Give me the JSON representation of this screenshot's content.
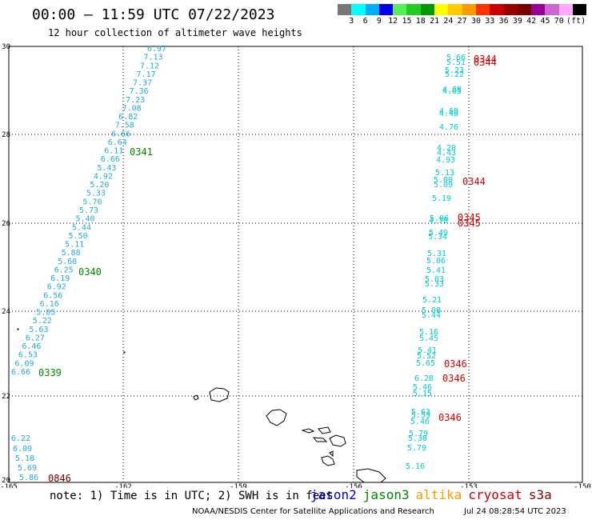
{
  "header": {
    "title": "00:00 — 11:59 UTC 07/22/2023",
    "subtitle": "12 hour collection of altimeter wave heights"
  },
  "color_scale": {
    "colors": [
      "#777777",
      "#00ffff",
      "#00aaff",
      "#0000ee",
      "#55ee55",
      "#22cc22",
      "#009900",
      "#ffff00",
      "#ffcc00",
      "#ff9900",
      "#ff3300",
      "#cc0000",
      "#990000",
      "#770000",
      "#990099",
      "#cc66cc",
      "#ffaaff",
      "#000000"
    ],
    "labels": [
      "3",
      "6",
      "9",
      "12",
      "15",
      "18",
      "21",
      "24",
      "27",
      "30",
      "33",
      "36",
      "39",
      "42",
      "45",
      "70",
      "(ft)"
    ]
  },
  "axes": {
    "lat_labels": [
      "30",
      "28",
      "26",
      "24",
      "22",
      "20"
    ],
    "lon_labels": [
      "-165",
      "-162",
      "-159",
      "-156",
      "-153",
      "-150"
    ]
  },
  "tracks": {
    "west_track_color": "#22aadd",
    "east_track_color": "#00cccc",
    "west_values": [
      "6.97",
      "7.13",
      "7.12",
      "7.17",
      "7.37",
      "7.36",
      "7.23",
      "7.08",
      "6.82",
      "7.58",
      "6.66",
      "6.64",
      "6.11",
      "6.66",
      "5.43",
      "4.92",
      "5.20",
      "5.33",
      "5.70",
      "5.73",
      "5.40",
      "5.44",
      "5.50",
      "5.11",
      "5.88",
      "5.60",
      "6.25",
      "6.19",
      "6.92",
      "6.56",
      "6.16",
      "5.85",
      "5.22",
      "5.63",
      "6.27",
      "6.46",
      "6.53",
      "6.09",
      "6.66"
    ],
    "south_values": [
      "6.22",
      "6.09",
      "5.18",
      "5.69",
      "5.86"
    ],
    "east_values": [
      "5.66",
      "5.51",
      "5.23",
      "5.22",
      "4.68",
      "4.65",
      "4.68",
      "4.48",
      "4.76",
      "4.20",
      "4.43",
      "4.93",
      "5.13",
      "5.00",
      "5.09",
      "5.19",
      "5.06",
      "4.70",
      "5.49",
      "5.34",
      "5.31",
      "5.06",
      "5.41",
      "5.03",
      "5.33",
      "5.21",
      "5.08",
      "5.44",
      "5.16",
      "5.45",
      "5.41",
      "5.52",
      "5.65",
      "6.28",
      "5.46",
      "5.15",
      "5.63",
      "5.59",
      "5.46",
      "5.79",
      "5.38",
      "5.79",
      "5.16"
    ]
  },
  "time_labels": [
    {
      "text": "0341",
      "color": "#008800"
    },
    {
      "text": "0340",
      "color": "#008800"
    },
    {
      "text": "0339",
      "color": "#008800"
    },
    {
      "text": "0846",
      "color": "#770000"
    },
    {
      "text": "0344",
      "color": "#dd0000"
    },
    {
      "text": "0344",
      "color": "#dd0000"
    },
    {
      "text": "0344",
      "color": "#dd0000"
    },
    {
      "text": "0345",
      "color": "#dd0000"
    },
    {
      "text": "0345",
      "color": "#dd0000"
    },
    {
      "text": "0346",
      "color": "#dd0000"
    },
    {
      "text": "0346",
      "color": "#dd0000"
    },
    {
      "text": "0346",
      "color": "#dd0000"
    }
  ],
  "footer": {
    "note": "note: 1) Time is in UTC; 2) SWH is in feet",
    "legend": [
      {
        "label": "jason2",
        "color": "#0000cc"
      },
      {
        "label": "jason3",
        "color": "#008800"
      },
      {
        "label": "altika",
        "color": "#ff9900"
      },
      {
        "label": "cryosat",
        "color": "#cc0000"
      },
      {
        "label": "s3a",
        "color": "#880000"
      }
    ],
    "credit": "NOAA/NESDIS Center for Satellite Applications and Research",
    "timestamp": "Jul 24 08:28:54 UTC 2023"
  }
}
